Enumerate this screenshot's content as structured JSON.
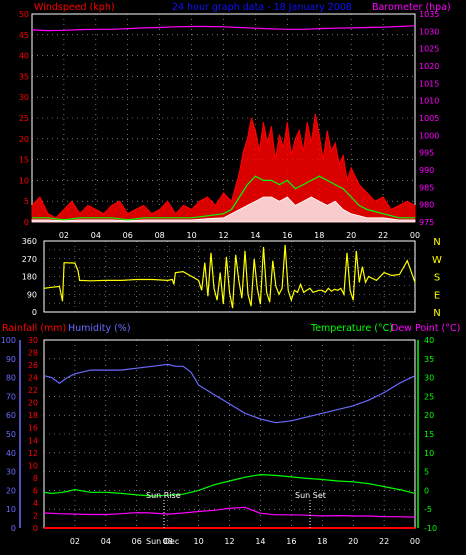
{
  "header": {
    "title": "24 hour graph data - 18 January 2008",
    "windspeed_label": "Windspeed (kph)",
    "barometer_label": "Barometer (hpa)"
  },
  "panel_bottom": {
    "rainfall_label": "Rainfall (mm)",
    "humidity_label": "Humidity (%)",
    "temperature_label": "Temperature (°C)",
    "dewpoint_label": "Dew Point (°C)",
    "sunrise_label": "Sun Rise",
    "sunset_label": "Sun Set",
    "sun_dec_label": "Sun Dec"
  },
  "colors": {
    "windspeed": "#ff0000",
    "gust_avg": "#00ff00",
    "wind_avg": "#ffffff",
    "barometer": "#ff00ff",
    "direction": "#ffff00",
    "humidity": "#6a6aff",
    "temperature": "#00ff00",
    "dewpoint": "#ff00ff",
    "rainfall": "#ff0000",
    "axis": "#ffffff",
    "grid": "#bbbbbb",
    "title": "#1010ff"
  },
  "chart_data": [
    {
      "type": "line",
      "id": "wind_baro",
      "title": "24 hour graph data - 18 January 2008",
      "x_tick_labels": [
        "02",
        "04",
        "06",
        "08",
        "10",
        "12",
        "14",
        "16",
        "18",
        "20",
        "22",
        "00"
      ],
      "x_range_hours": [
        0,
        24
      ],
      "left_axis": {
        "label": "Windspeed (kph)",
        "range": [
          0,
          50
        ],
        "ticks": [
          0,
          5,
          10,
          15,
          20,
          25,
          30,
          35,
          40,
          45,
          50
        ]
      },
      "right_axis": {
        "label": "Barometer (hpa)",
        "range": [
          975,
          1035
        ],
        "ticks": [
          975,
          980,
          985,
          990,
          995,
          1000,
          1005,
          1010,
          1015,
          1020,
          1025,
          1030,
          1035
        ]
      },
      "series": [
        {
          "name": "Windspeed",
          "axis": "left",
          "type": "area",
          "x": [
            0,
            0.5,
            1,
            1.5,
            2,
            2.5,
            3,
            3.5,
            4,
            4.5,
            5,
            5.5,
            6,
            6.5,
            7,
            7.5,
            8,
            8.5,
            9,
            9.5,
            10,
            10.5,
            11,
            11.5,
            12,
            12.5,
            13,
            13.25,
            13.5,
            13.75,
            14,
            14.25,
            14.5,
            14.75,
            15,
            15.25,
            15.5,
            15.75,
            16,
            16.25,
            16.5,
            16.75,
            17,
            17.25,
            17.5,
            17.75,
            18,
            18.25,
            18.5,
            18.75,
            19,
            19.25,
            19.5,
            19.75,
            20,
            20.5,
            21,
            21.5,
            22,
            22.5,
            23,
            23.5,
            24
          ],
          "values": [
            4,
            6,
            2,
            1,
            3,
            5,
            2,
            4,
            3,
            2,
            4,
            5,
            2,
            3,
            4,
            2,
            3,
            5,
            2,
            4,
            3,
            5,
            6,
            4,
            7,
            5,
            12,
            17,
            20,
            25,
            22,
            17,
            24,
            19,
            23,
            15,
            21,
            18,
            24,
            16,
            20,
            22,
            17,
            24,
            19,
            26,
            21,
            15,
            22,
            17,
            19,
            14,
            16,
            10,
            13,
            9,
            7,
            5,
            6,
            3,
            4,
            5,
            4
          ]
        },
        {
          "name": "Average",
          "axis": "left",
          "x": [
            0,
            1,
            2,
            3,
            4,
            5,
            6,
            7,
            8,
            9,
            10,
            11,
            12,
            12.5,
            13,
            13.5,
            14,
            14.5,
            15,
            15.5,
            16,
            16.5,
            17,
            17.5,
            18,
            18.5,
            19,
            19.5,
            20,
            20.5,
            21,
            22,
            23,
            24
          ],
          "values": [
            1,
            1,
            0.5,
            1,
            1,
            1,
            0.5,
            1,
            1,
            1,
            1,
            1.5,
            2,
            3,
            6,
            9,
            11,
            10,
            10,
            9,
            10,
            8,
            9,
            10,
            11,
            10,
            9,
            8,
            6,
            4,
            3,
            2,
            1,
            1
          ]
        },
        {
          "name": "Wind",
          "axis": "left",
          "x": [
            0,
            1,
            2,
            3,
            4,
            5,
            6,
            7,
            8,
            9,
            10,
            11,
            12,
            13,
            13.5,
            14,
            14.5,
            15,
            15.5,
            16,
            16.5,
            17,
            17.5,
            18,
            18.5,
            19,
            19.5,
            20,
            21,
            22,
            23,
            24
          ],
          "values": [
            0.5,
            0.5,
            0.3,
            0.5,
            0.5,
            0.5,
            0.3,
            0.5,
            0.5,
            0.5,
            0.5,
            0.8,
            1,
            3,
            4,
            5,
            6,
            6,
            5,
            6,
            4,
            5,
            6,
            5,
            4,
            5,
            3,
            2,
            1,
            1,
            0.5,
            0.5
          ]
        },
        {
          "name": "Barometer",
          "axis": "right",
          "x": [
            0,
            1,
            2,
            3,
            4,
            5,
            6,
            7,
            8,
            9,
            10,
            11,
            12,
            13,
            14,
            15,
            16,
            17,
            18,
            19,
            20,
            21,
            22,
            23,
            24
          ],
          "values": [
            1030.4,
            1030.2,
            1030.3,
            1030.5,
            1030.6,
            1030.6,
            1030.8,
            1031.0,
            1031.1,
            1031.3,
            1031.4,
            1031.4,
            1031.3,
            1031.1,
            1030.9,
            1030.7,
            1030.6,
            1030.6,
            1030.8,
            1030.9,
            1031.0,
            1031.1,
            1031.2,
            1031.4,
            1031.6
          ]
        }
      ]
    },
    {
      "type": "line",
      "id": "direction",
      "x_range_hours": [
        0,
        24
      ],
      "left_axis": {
        "range": [
          0,
          360
        ],
        "ticks": [
          0,
          45,
          90,
          135,
          180,
          225,
          270,
          315,
          360
        ]
      },
      "right_axis": {
        "ticks": [
          "N",
          "W",
          "S",
          "E",
          "N"
        ]
      },
      "series": [
        {
          "name": "Direction",
          "x": [
            0,
            0.5,
            1,
            1.2,
            1.3,
            2,
            2.2,
            2.3,
            3,
            4,
            5,
            6,
            7,
            8,
            8.3,
            8.4,
            8.5,
            9,
            10,
            10.2,
            10.4,
            10.6,
            10.8,
            11,
            11.2,
            11.4,
            11.6,
            11.8,
            12,
            12.2,
            12.4,
            12.6,
            12.8,
            13,
            13.2,
            13.4,
            13.6,
            13.8,
            14,
            14.2,
            14.4,
            14.6,
            14.8,
            15,
            15.2,
            15.4,
            15.6,
            15.8,
            16,
            16.2,
            16.4,
            16.6,
            16.8,
            17,
            17.2,
            17.4,
            17.6,
            17.8,
            18,
            18.2,
            18.4,
            18.6,
            18.8,
            19,
            19.2,
            19.4,
            19.6,
            19.8,
            20,
            20.2,
            20.4,
            20.6,
            20.8,
            21,
            21.5,
            22,
            22.5,
            23,
            23.5,
            24
          ],
          "values": [
            120,
            125,
            130,
            55,
            250,
            248,
            210,
            160,
            158,
            160,
            160,
            165,
            165,
            160,
            165,
            140,
            200,
            205,
            160,
            110,
            250,
            80,
            300,
            120,
            60,
            200,
            40,
            280,
            100,
            20,
            290,
            160,
            70,
            310,
            90,
            30,
            270,
            120,
            40,
            330,
            100,
            50,
            260,
            130,
            90,
            120,
            340,
            110,
            60,
            110,
            100,
            140,
            100,
            110,
            120,
            100,
            105,
            110,
            110,
            100,
            120,
            105,
            115,
            110,
            120,
            90,
            300,
            110,
            60,
            310,
            150,
            230,
            150,
            180,
            160,
            200,
            185,
            190,
            260,
            150
          ]
        }
      ]
    },
    {
      "type": "line",
      "id": "temp_hum_rain",
      "x_tick_labels": [
        "02",
        "04",
        "06",
        "08",
        "10",
        "12",
        "14",
        "16",
        "18",
        "20",
        "22",
        "00"
      ],
      "x_range_hours": [
        0,
        24
      ],
      "humidity_axis": {
        "label": "Humidity (%)",
        "range": [
          0,
          100
        ],
        "ticks": [
          0,
          10,
          20,
          30,
          40,
          50,
          60,
          70,
          80,
          90,
          100
        ]
      },
      "rainfall_axis": {
        "label": "Rainfall (mm)",
        "range": [
          0,
          30
        ],
        "ticks": [
          0,
          2,
          4,
          6,
          8,
          10,
          12,
          14,
          16,
          18,
          20,
          22,
          24,
          26,
          28,
          30
        ]
      },
      "temperature_axis": {
        "label": "Temperature (°C)",
        "range": [
          -10,
          40
        ],
        "ticks": [
          -10,
          -5,
          0,
          5,
          10,
          15,
          20,
          25,
          30,
          35,
          40
        ]
      },
      "series": [
        {
          "name": "Humidity",
          "axis": "humidity",
          "x": [
            0,
            0.5,
            1,
            1.5,
            2,
            3,
            4,
            5,
            6,
            7,
            8,
            8.5,
            9,
            9.5,
            10,
            11,
            12,
            13,
            14,
            15,
            16,
            17,
            18,
            19,
            20,
            21,
            22,
            23,
            24
          ],
          "values": [
            81,
            80,
            77,
            80,
            82,
            84,
            84,
            84,
            85,
            86,
            87,
            86,
            86,
            83,
            76,
            71,
            66,
            61,
            58,
            56,
            57,
            59,
            61,
            63,
            65,
            68,
            72,
            77,
            81
          ]
        },
        {
          "name": "Temperature",
          "axis": "temperature",
          "x": [
            0,
            0.5,
            1,
            1.5,
            2,
            3,
            4,
            5,
            6,
            7,
            8,
            9,
            10,
            11,
            12,
            13,
            14,
            15,
            16,
            17,
            18,
            19,
            20,
            21,
            22,
            23,
            24
          ],
          "values": [
            -0.5,
            -0.8,
            -0.6,
            -0.3,
            0.2,
            -0.5,
            -0.5,
            -0.8,
            -1.2,
            -1.5,
            -1.3,
            -1,
            0,
            1.5,
            2.5,
            3.5,
            4.2,
            4.0,
            3.6,
            3.2,
            2.9,
            2.5,
            2.3,
            1.8,
            1,
            0.2,
            -0.8
          ]
        },
        {
          "name": "Dew Point",
          "axis": "temperature",
          "x": [
            0,
            1,
            2,
            3,
            4,
            5,
            6,
            7,
            8,
            9,
            10,
            11,
            12,
            13,
            14,
            15,
            16,
            17,
            18,
            19,
            20,
            21,
            22,
            23,
            24
          ],
          "values": [
            -6,
            -6.2,
            -6.3,
            -6.4,
            -6.4,
            -6.2,
            -5.9,
            -6,
            -6.3,
            -6,
            -5.6,
            -5.3,
            -4.8,
            -4.5,
            -6.1,
            -6.5,
            -6.5,
            -6.6,
            -6.8,
            -6.7,
            -6.8,
            -6.8,
            -7,
            -7,
            -7.1
          ]
        },
        {
          "name": "Rainfall",
          "axis": "rainfall",
          "x": [
            0,
            24
          ],
          "values": [
            0,
            0
          ]
        }
      ],
      "annotations": [
        {
          "label": "Sun Rise",
          "x": 7.8
        },
        {
          "label": "Sun Dec",
          "x": 7.8
        },
        {
          "label": "Sun Set",
          "x": 17.2
        }
      ]
    }
  ]
}
